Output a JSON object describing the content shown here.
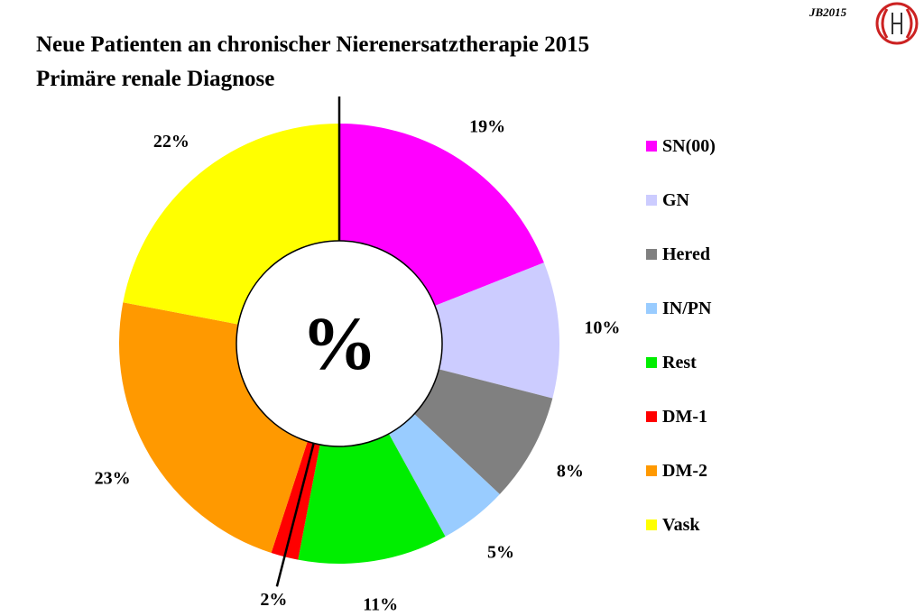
{
  "header": {
    "title_line1": "Neue Patienten an chronischer Nierenersatztherapie 2015",
    "title_line2": "Primäre renale Diagnose",
    "corner_tag": "JB2015"
  },
  "chart_data": {
    "type": "pie",
    "center_label": "%",
    "legend_position": "right",
    "categories": [
      "SN(00)",
      "GN",
      "Hered",
      "IN/PN",
      "Rest",
      "DM-1",
      "DM-2",
      "Vask"
    ],
    "values": [
      19,
      10,
      8,
      5,
      11,
      2,
      23,
      22
    ],
    "data_labels": [
      "19%",
      "10%",
      "8%",
      "5%",
      "11%",
      "2%",
      "23%",
      "22%"
    ],
    "colors": [
      "#ff00ff",
      "#ccccff",
      "#808080",
      "#99ccff",
      "#00ee00",
      "#ff0000",
      "#ff9900",
      "#ffff00"
    ]
  }
}
